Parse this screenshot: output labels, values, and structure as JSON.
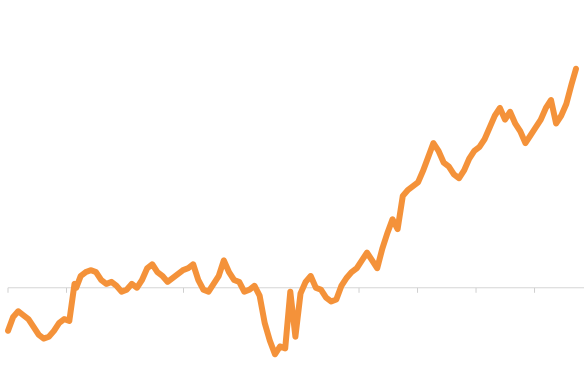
{
  "chart_data": {
    "type": "line",
    "title": "",
    "xlabel": "",
    "ylabel": "",
    "grid": false,
    "legend": "none",
    "xlim": [
      0,
      100
    ],
    "ylim": [
      -40,
      140
    ],
    "baseline_value": 0,
    "x_ticks": [
      0,
      10.3,
      20.6,
      30.9,
      41.2,
      51.5,
      61.8,
      72.1,
      82.4,
      92.7
    ],
    "colors": {
      "series": "#f4923a",
      "baseline": "#d6d6d6"
    },
    "series": [
      {
        "color": "#f4923a",
        "x": [
          0,
          0.9,
          1.8,
          2.7,
          3.6,
          4.5,
          5.4,
          6.3,
          7.2,
          8.1,
          9.0,
          9.9,
          10.8,
          11.7,
          12.0,
          12.8,
          13.7,
          14.6,
          15.5,
          16.4,
          17.3,
          18.2,
          19.1,
          20.0,
          20.9,
          21.8,
          22.7,
          23.6,
          24.5,
          25.4,
          26.3,
          27.2,
          28.1,
          29.0,
          29.9,
          30.8,
          31.7,
          32.6,
          33.5,
          34.4,
          35.3,
          36.2,
          37.1,
          38.0,
          38.9,
          39.8,
          40.7,
          41.6,
          42.5,
          43.4,
          44.3,
          45.2,
          46.1,
          47.0,
          47.9,
          48.8,
          49.7,
          50.6,
          51.5,
          52.4,
          53.3,
          54.2,
          55.1,
          56.0,
          56.9,
          57.8,
          58.7,
          59.6,
          60.5,
          61.4,
          62.3,
          63.2,
          64.1,
          65.0,
          65.9,
          66.8,
          67.7,
          68.6,
          69.5,
          70.4,
          71.3,
          72.2,
          73.1,
          74.0,
          74.9,
          75.8,
          76.7,
          77.6,
          78.5,
          79.4,
          80.3,
          81.2,
          82.1,
          83.0,
          83.9,
          84.8,
          85.7,
          86.6,
          87.5,
          88.4,
          89.3,
          90.2,
          91.1,
          92.0,
          92.9,
          93.8,
          94.7,
          95.6,
          96.5,
          97.4,
          98.3,
          99.2,
          100
        ],
        "y": [
          -22,
          -15,
          -12,
          -14,
          -16,
          -20,
          -24,
          -26,
          -25,
          -22,
          -18,
          -16,
          -17,
          2,
          0,
          6,
          8,
          9,
          8,
          4,
          2,
          3,
          1,
          -2,
          -1,
          2,
          0,
          4,
          10,
          12,
          8,
          6,
          3,
          5,
          7,
          9,
          10,
          12,
          4,
          -1,
          -2,
          2,
          6,
          14,
          8,
          4,
          3,
          -2,
          -1,
          1,
          -4,
          -18,
          -27,
          -34,
          -30,
          -31,
          -2,
          -25,
          -3,
          3,
          6,
          0,
          -1,
          -5,
          -7,
          -6,
          1,
          5,
          8,
          10,
          14,
          18,
          14,
          10,
          20,
          28,
          35,
          30,
          47,
          50,
          52,
          54,
          60,
          67,
          74,
          70,
          64,
          62,
          58,
          56,
          60,
          66,
          70,
          72,
          76,
          82,
          88,
          92,
          86,
          90,
          84,
          80,
          74,
          78,
          82,
          86,
          92,
          96,
          84,
          88,
          94,
          104,
          112
        ]
      }
    ]
  }
}
